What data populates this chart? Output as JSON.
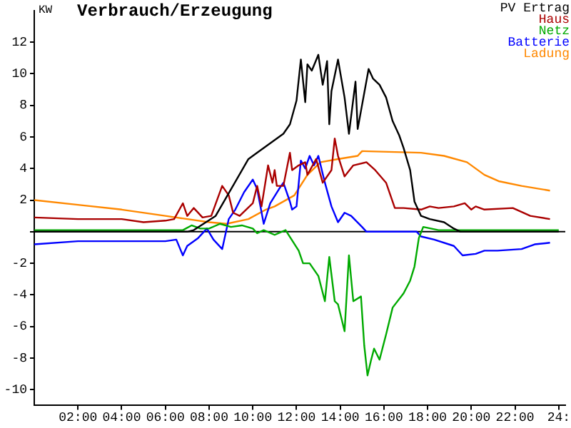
{
  "chart_data": {
    "type": "line",
    "title": "Verbrauch/Erzeugung",
    "ylabel": "KW",
    "xlim": [
      0,
      24.3
    ],
    "ylim": [
      -11,
      14
    ],
    "xticks": [
      {
        "value": 2,
        "label": "02:00"
      },
      {
        "value": 4,
        "label": "04:00"
      },
      {
        "value": 6,
        "label": "06:00"
      },
      {
        "value": 8,
        "label": "08:00"
      },
      {
        "value": 10,
        "label": "10:00"
      },
      {
        "value": 12,
        "label": "12:00"
      },
      {
        "value": 14,
        "label": "14:00"
      },
      {
        "value": 16,
        "label": "16:00"
      },
      {
        "value": 18,
        "label": "18:00"
      },
      {
        "value": 20,
        "label": "20:00"
      },
      {
        "value": 22,
        "label": "22:00"
      },
      {
        "value": 24,
        "label": "24:"
      }
    ],
    "yticks": [
      -10,
      -8,
      -6,
      -4,
      -2,
      {
        "value": 0,
        "label": null
      },
      2,
      4,
      6,
      8,
      10,
      12
    ],
    "grid": false,
    "ref_lines": [
      {
        "axis": "y",
        "value": 0,
        "color": "#000000"
      }
    ],
    "legend": "top right",
    "marker": "none",
    "line_style": "solid",
    "series": [
      {
        "name": "PV Ertrag",
        "color": "#000000",
        "x": [
          0,
          7.0,
          7.3,
          8.3,
          9.8,
          10.1,
          11.4,
          11.7,
          12.0,
          12.2,
          12.4,
          12.5,
          12.7,
          13.0,
          13.2,
          13.4,
          13.5,
          13.6,
          13.9,
          14.2,
          14.4,
          14.7,
          14.8,
          15.3,
          15.5,
          15.8,
          16.1,
          16.4,
          16.7,
          16.9,
          17.2,
          17.4,
          17.7,
          18.1,
          18.75,
          19.2,
          19.5,
          24
        ],
        "values": [
          0,
          0,
          0.1,
          1.0,
          4.6,
          4.9,
          6.2,
          6.8,
          8.3,
          10.9,
          8.2,
          10.6,
          10.2,
          11.2,
          9.3,
          10.8,
          6.8,
          8.9,
          10.9,
          8.5,
          6.2,
          9.5,
          6.5,
          10.3,
          9.7,
          9.3,
          8.5,
          7.0,
          6.1,
          5.3,
          3.9,
          1.9,
          1.0,
          0.8,
          0.6,
          0.2,
          0,
          0
        ]
      },
      {
        "name": "Haus",
        "color": "#aa0000",
        "x": [
          0,
          2,
          4,
          5,
          6,
          6.4,
          6.8,
          7.0,
          7.3,
          7.7,
          8.1,
          8.6,
          8.9,
          9.1,
          9.4,
          10,
          10.2,
          10.4,
          10.7,
          10.9,
          11.0,
          11.1,
          11.4,
          11.7,
          11.8,
          12.1,
          12.4,
          12.5,
          12.9,
          13.2,
          13.6,
          13.75,
          13.9,
          14.2,
          14.6,
          15.2,
          15.6,
          16.1,
          16.5,
          16.9,
          17.7,
          18.1,
          18.5,
          19.2,
          19.7,
          20.0,
          20.2,
          20.6,
          21.9,
          22.7,
          23.6
        ],
        "values": [
          0.9,
          0.8,
          0.8,
          0.6,
          0.7,
          0.8,
          1.8,
          1.0,
          1.5,
          0.9,
          1.0,
          2.9,
          2.3,
          1.2,
          1.0,
          1.8,
          2.9,
          1.6,
          4.2,
          3.1,
          3.9,
          2.9,
          2.9,
          5.0,
          3.9,
          4.2,
          4.4,
          3.6,
          4.6,
          3.1,
          3.9,
          5.9,
          4.8,
          3.5,
          4.2,
          4.4,
          3.9,
          3.1,
          1.5,
          1.5,
          1.4,
          1.6,
          1.5,
          1.6,
          1.8,
          1.4,
          1.6,
          1.4,
          1.5,
          1.0,
          0.8
        ]
      },
      {
        "name": "Netz",
        "color": "#00aa00",
        "x": [
          0,
          6.8,
          7.2,
          7.6,
          8.0,
          8.5,
          9.0,
          9.5,
          10.0,
          10.2,
          10.5,
          11.0,
          11.5,
          12.1,
          12.3,
          12.6,
          13.0,
          13.3,
          13.5,
          13.75,
          13.9,
          14.2,
          14.4,
          14.6,
          14.95,
          15.1,
          15.25,
          15.4,
          15.55,
          15.8,
          16.1,
          16.4,
          16.9,
          17.2,
          17.4,
          17.6,
          17.8,
          18.5,
          24
        ],
        "values": [
          0.1,
          0.1,
          0.4,
          0.2,
          0.2,
          0.5,
          0.3,
          0.4,
          0.2,
          -0.1,
          0.1,
          -0.2,
          0.1,
          -1.2,
          -2.0,
          -2.0,
          -2.8,
          -4.4,
          -1.6,
          -4.4,
          -4.6,
          -6.3,
          -1.5,
          -4.4,
          -4.1,
          -7.2,
          -9.1,
          -8.2,
          -7.4,
          -8.1,
          -6.5,
          -4.8,
          -3.9,
          -3.1,
          -2.2,
          -0.4,
          0.3,
          0.1,
          0.1
        ]
      },
      {
        "name": "Batterie",
        "color": "#0000ff",
        "x": [
          0,
          2,
          4,
          6,
          6.5,
          6.8,
          7.0,
          7.5,
          7.9,
          8.2,
          8.6,
          8.9,
          9.2,
          9.6,
          10.0,
          10.2,
          10.5,
          10.8,
          11.2,
          11.4,
          11.7,
          11.8,
          12.0,
          12.2,
          12.4,
          12.6,
          12.8,
          13.0,
          13.3,
          13.6,
          13.9,
          14.2,
          14.5,
          15.0,
          15.2,
          17.5,
          17.7,
          18.3,
          19.2,
          19.6,
          20.2,
          20.6,
          21.2,
          22.3,
          22.9,
          23.6
        ],
        "values": [
          -0.8,
          -0.6,
          -0.6,
          -0.6,
          -0.5,
          -1.5,
          -0.9,
          -0.4,
          0.2,
          -0.5,
          -1.1,
          0.8,
          1.4,
          2.5,
          3.3,
          2.7,
          0.5,
          1.8,
          2.7,
          3.1,
          1.9,
          1.4,
          1.6,
          4.5,
          4.0,
          4.8,
          4.2,
          4.8,
          3.1,
          1.6,
          0.6,
          1.2,
          1.0,
          0.3,
          0,
          0,
          -0.3,
          -0.5,
          -0.9,
          -1.5,
          -1.4,
          -1.2,
          -1.2,
          -1.1,
          -0.8,
          -0.7
        ]
      },
      {
        "name": "Ladung",
        "color": "#ff8800",
        "x": [
          0,
          2,
          4,
          6,
          8,
          8.8,
          9.8,
          10.6,
          11.0,
          11.9,
          12.5,
          13.1,
          13.9,
          14.8,
          15.0,
          17.7,
          18.75,
          19.8,
          20.6,
          21.25,
          22.3,
          23.6
        ],
        "values": [
          2.0,
          1.7,
          1.4,
          1.0,
          0.6,
          0.5,
          0.8,
          1.4,
          1.6,
          2.3,
          3.6,
          4.4,
          4.6,
          4.8,
          5.1,
          5.0,
          4.8,
          4.4,
          3.6,
          3.2,
          2.9,
          2.6
        ]
      }
    ]
  }
}
